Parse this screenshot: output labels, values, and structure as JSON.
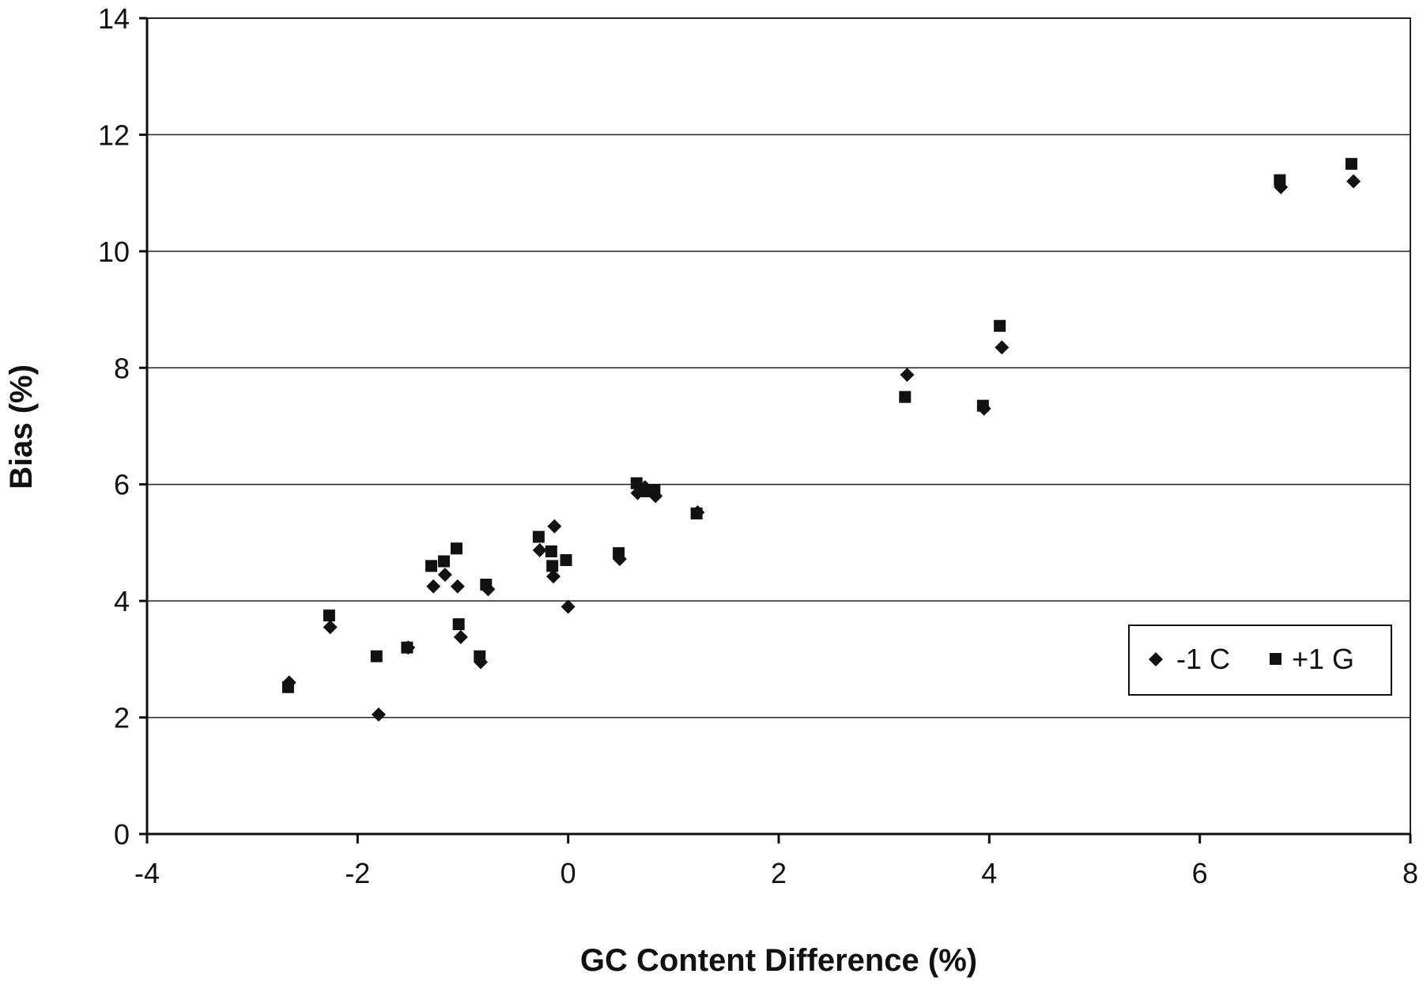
{
  "chart_data": {
    "type": "scatter",
    "title": "",
    "xlabel": "GC Content Difference (%)",
    "ylabel": "Bias (%)",
    "xlim": [
      -4,
      8
    ],
    "ylim": [
      0,
      14
    ],
    "x_ticks": [
      "-4",
      "-2",
      "0",
      "2",
      "4",
      "6",
      "8"
    ],
    "y_ticks": [
      "0",
      "2",
      "4",
      "6",
      "8",
      "10",
      "12",
      "14"
    ],
    "grid": "horizontal",
    "legend_position": "right",
    "series": [
      {
        "name": "-1 C",
        "marker": "diamond",
        "color": "#111111",
        "points": [
          {
            "x": -2.65,
            "y": 2.6
          },
          {
            "x": -2.26,
            "y": 3.55
          },
          {
            "x": -1.8,
            "y": 2.05
          },
          {
            "x": -1.52,
            "y": 3.2
          },
          {
            "x": -1.28,
            "y": 4.25
          },
          {
            "x": -1.17,
            "y": 4.45
          },
          {
            "x": -1.05,
            "y": 4.25
          },
          {
            "x": -1.02,
            "y": 3.38
          },
          {
            "x": -0.83,
            "y": 2.95
          },
          {
            "x": -0.76,
            "y": 4.2
          },
          {
            "x": -0.27,
            "y": 4.87
          },
          {
            "x": -0.13,
            "y": 5.28
          },
          {
            "x": -0.14,
            "y": 4.42
          },
          {
            "x": 0.0,
            "y": 3.9
          },
          {
            "x": 0.49,
            "y": 4.72
          },
          {
            "x": 0.66,
            "y": 5.85
          },
          {
            "x": 0.73,
            "y": 5.95
          },
          {
            "x": 0.83,
            "y": 5.8
          },
          {
            "x": 1.23,
            "y": 5.52
          },
          {
            "x": 3.22,
            "y": 7.88
          },
          {
            "x": 3.95,
            "y": 7.3
          },
          {
            "x": 4.12,
            "y": 8.35
          },
          {
            "x": 6.77,
            "y": 11.1
          },
          {
            "x": 7.46,
            "y": 11.2
          }
        ]
      },
      {
        "name": "+1 G",
        "marker": "square",
        "color": "#111111",
        "points": [
          {
            "x": -2.66,
            "y": 2.52
          },
          {
            "x": -2.27,
            "y": 3.75
          },
          {
            "x": -1.82,
            "y": 3.05
          },
          {
            "x": -1.53,
            "y": 3.2
          },
          {
            "x": -1.3,
            "y": 4.6
          },
          {
            "x": -1.18,
            "y": 4.68
          },
          {
            "x": -1.06,
            "y": 4.9
          },
          {
            "x": -1.04,
            "y": 3.6
          },
          {
            "x": -0.84,
            "y": 3.05
          },
          {
            "x": -0.78,
            "y": 4.28
          },
          {
            "x": -0.28,
            "y": 5.1
          },
          {
            "x": -0.16,
            "y": 4.85
          },
          {
            "x": -0.15,
            "y": 4.6
          },
          {
            "x": -0.02,
            "y": 4.7
          },
          {
            "x": 0.48,
            "y": 4.82
          },
          {
            "x": 0.65,
            "y": 6.02
          },
          {
            "x": 0.75,
            "y": 5.88
          },
          {
            "x": 0.82,
            "y": 5.9
          },
          {
            "x": 1.22,
            "y": 5.5
          },
          {
            "x": 3.2,
            "y": 7.5
          },
          {
            "x": 3.94,
            "y": 7.35
          },
          {
            "x": 4.1,
            "y": 8.72
          },
          {
            "x": 6.76,
            "y": 11.22
          },
          {
            "x": 7.44,
            "y": 11.5
          }
        ]
      }
    ]
  }
}
